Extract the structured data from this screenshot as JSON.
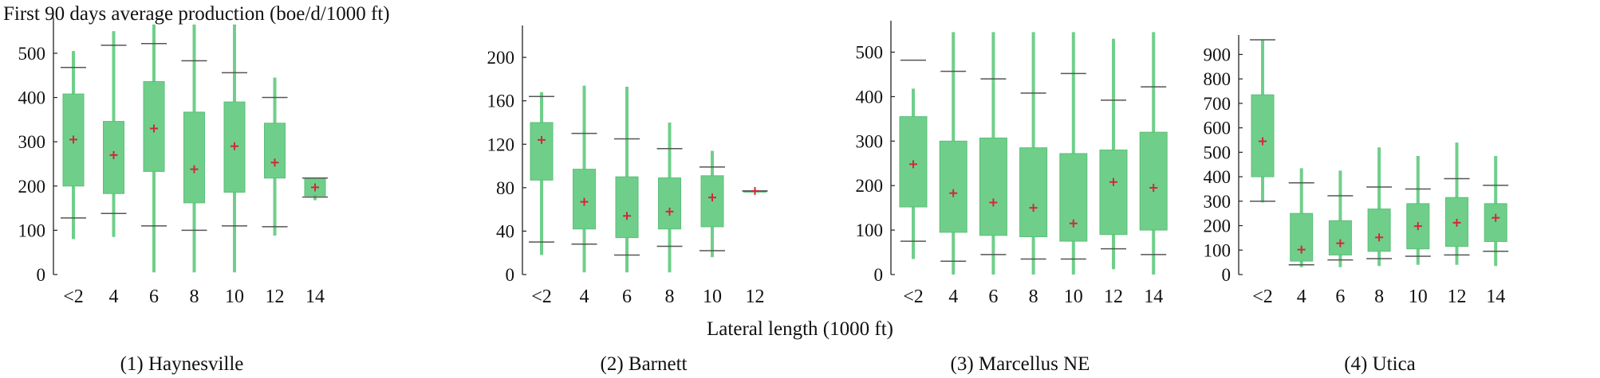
{
  "figure": {
    "ylabel": "First 90 days average production (boe/d/1000 ft)",
    "xlabel": "Lateral length (1000 ft)"
  },
  "colors": {
    "box": "#6fcf8a",
    "box_edge": "#5bbf77",
    "mean": "#d0283c",
    "cap": "#555555",
    "axis": "#222222"
  },
  "chart_data": [
    {
      "type": "box",
      "panel_label": "(1) Haynesville",
      "categories": [
        "<2",
        "4",
        "6",
        "8",
        "10",
        "12",
        "14"
      ],
      "ylim": [
        0,
        570
      ],
      "yticks": [
        0,
        100,
        200,
        300,
        400,
        500
      ],
      "boxes": [
        {
          "whisker_low": 80,
          "cap_low": 128,
          "q1": 200,
          "q3": 408,
          "cap_high": 468,
          "whisker_high": 505,
          "mean": 305
        },
        {
          "whisker_low": 85,
          "cap_low": 138,
          "q1": 183,
          "q3": 346,
          "cap_high": 518,
          "whisker_high": 550,
          "mean": 270
        },
        {
          "whisker_low": 5,
          "cap_low": 110,
          "q1": 233,
          "q3": 436,
          "cap_high": 522,
          "whisker_high": 565,
          "mean": 330
        },
        {
          "whisker_low": 5,
          "cap_low": 100,
          "q1": 162,
          "q3": 367,
          "cap_high": 483,
          "whisker_high": 565,
          "mean": 238
        },
        {
          "whisker_low": 5,
          "cap_low": 110,
          "q1": 186,
          "q3": 390,
          "cap_high": 456,
          "whisker_high": 565,
          "mean": 290
        },
        {
          "whisker_low": 88,
          "cap_low": 108,
          "q1": 218,
          "q3": 342,
          "cap_high": 400,
          "whisker_high": 445,
          "mean": 253
        },
        {
          "whisker_low": 168,
          "cap_low": 175,
          "q1": 178,
          "q3": 218,
          "cap_high": 218,
          "whisker_high": 218,
          "mean": 197
        }
      ]
    },
    {
      "type": "box",
      "panel_label": "(2) Barnett",
      "categories": [
        "<2",
        "4",
        "6",
        "8",
        "10",
        "12"
      ],
      "ylim": [
        0,
        225
      ],
      "yticks": [
        0,
        40,
        80,
        120,
        160,
        200
      ],
      "boxes": [
        {
          "whisker_low": 18,
          "cap_low": 30,
          "q1": 87,
          "q3": 140,
          "cap_high": 164,
          "whisker_high": 168,
          "mean": 124
        },
        {
          "whisker_low": 2,
          "cap_low": 28,
          "q1": 42,
          "q3": 97,
          "cap_high": 130,
          "whisker_high": 174,
          "mean": 67
        },
        {
          "whisker_low": 2,
          "cap_low": 18,
          "q1": 34,
          "q3": 90,
          "cap_high": 125,
          "whisker_high": 173,
          "mean": 54
        },
        {
          "whisker_low": 2,
          "cap_low": 26,
          "q1": 42,
          "q3": 89,
          "cap_high": 116,
          "whisker_high": 140,
          "mean": 58
        },
        {
          "whisker_low": 16,
          "cap_low": 22,
          "q1": 44,
          "q3": 91,
          "cap_high": 99,
          "whisker_high": 114,
          "mean": 71
        },
        {
          "whisker_low": 77,
          "cap_low": 77,
          "q1": 77,
          "q3": 77,
          "cap_high": 77,
          "whisker_high": 77,
          "mean": 77
        }
      ]
    },
    {
      "type": "box",
      "panel_label": "(3) Marcellus NE",
      "categories": [
        "<2",
        "4",
        "6",
        "8",
        "10",
        "12",
        "14"
      ],
      "ylim": [
        0,
        560
      ],
      "yticks": [
        0,
        100,
        200,
        300,
        400,
        500
      ],
      "boxes": [
        {
          "whisker_low": 35,
          "cap_low": 75,
          "q1": 152,
          "q3": 355,
          "cap_high": 482,
          "whisker_high": 418,
          "mean": 248
        },
        {
          "whisker_low": 0,
          "cap_low": 30,
          "q1": 95,
          "q3": 300,
          "cap_high": 457,
          "whisker_high": 545,
          "mean": 183
        },
        {
          "whisker_low": 0,
          "cap_low": 45,
          "q1": 88,
          "q3": 307,
          "cap_high": 440,
          "whisker_high": 545,
          "mean": 162
        },
        {
          "whisker_low": 0,
          "cap_low": 35,
          "q1": 85,
          "q3": 285,
          "cap_high": 408,
          "whisker_high": 545,
          "mean": 150
        },
        {
          "whisker_low": 0,
          "cap_low": 35,
          "q1": 75,
          "q3": 272,
          "cap_high": 452,
          "whisker_high": 545,
          "mean": 115
        },
        {
          "whisker_low": 12,
          "cap_low": 58,
          "q1": 90,
          "q3": 280,
          "cap_high": 392,
          "whisker_high": 530,
          "mean": 208
        },
        {
          "whisker_low": 0,
          "cap_low": 45,
          "q1": 100,
          "q3": 320,
          "cap_high": 422,
          "whisker_high": 545,
          "mean": 195
        }
      ]
    },
    {
      "type": "box",
      "panel_label": "(4) Utica",
      "categories": [
        "<2",
        "4",
        "6",
        "8",
        "10",
        "12",
        "14"
      ],
      "ylim": [
        0,
        960
      ],
      "yticks": [
        0,
        100,
        200,
        300,
        400,
        500,
        600,
        700,
        800,
        900
      ],
      "boxes": [
        {
          "whisker_low": 295,
          "cap_low": 300,
          "q1": 400,
          "q3": 735,
          "cap_high": 960,
          "whisker_high": 960,
          "mean": 545
        },
        {
          "whisker_low": 30,
          "cap_low": 40,
          "q1": 55,
          "q3": 250,
          "cap_high": 375,
          "whisker_high": 435,
          "mean": 102
        },
        {
          "whisker_low": 30,
          "cap_low": 60,
          "q1": 80,
          "q3": 220,
          "cap_high": 322,
          "whisker_high": 425,
          "mean": 128
        },
        {
          "whisker_low": 35,
          "cap_low": 65,
          "q1": 95,
          "q3": 268,
          "cap_high": 358,
          "whisker_high": 520,
          "mean": 152
        },
        {
          "whisker_low": 40,
          "cap_low": 75,
          "q1": 105,
          "q3": 290,
          "cap_high": 350,
          "whisker_high": 485,
          "mean": 198
        },
        {
          "whisker_low": 40,
          "cap_low": 80,
          "q1": 115,
          "q3": 315,
          "cap_high": 392,
          "whisker_high": 540,
          "mean": 212
        },
        {
          "whisker_low": 35,
          "cap_low": 95,
          "q1": 135,
          "q3": 290,
          "cap_high": 365,
          "whisker_high": 485,
          "mean": 232
        }
      ]
    }
  ]
}
